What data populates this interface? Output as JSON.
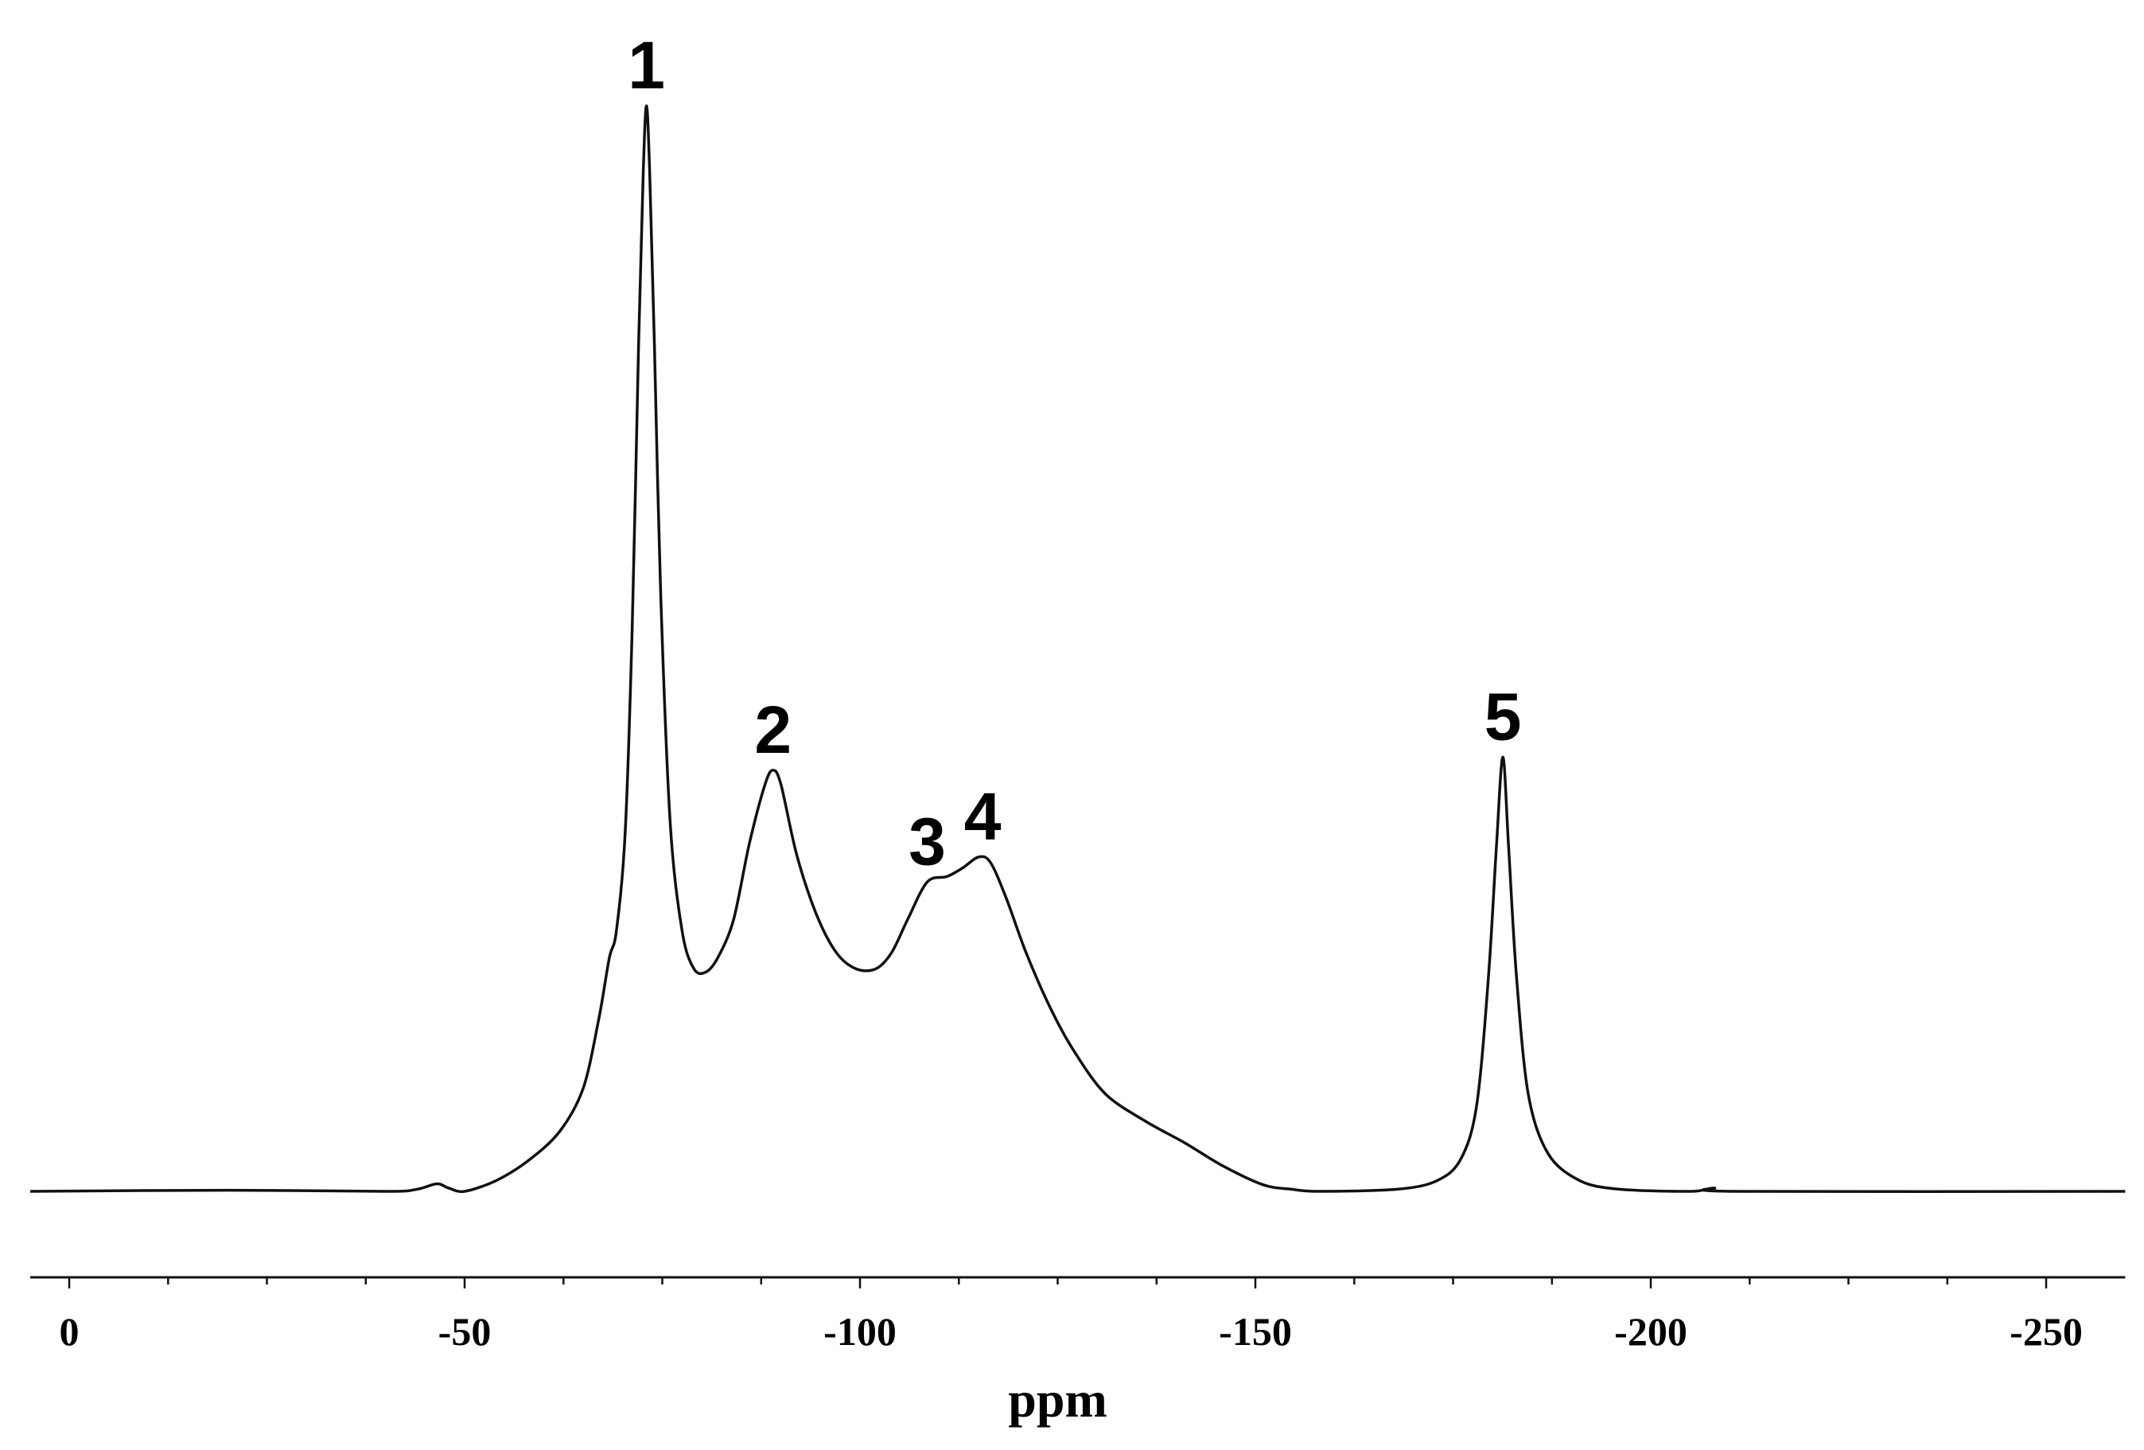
{
  "chart_data": {
    "type": "line",
    "title": "",
    "xlabel": "ppm",
    "ylabel": "",
    "xlim": [
      5,
      -260
    ],
    "ylim": [
      0,
      100
    ],
    "x_reversed": true,
    "grid": false,
    "x_ticks": [
      0,
      -50,
      -100,
      -150,
      -200,
      -250
    ],
    "x_tick_labels": [
      "0",
      "-50",
      "-100",
      "-150",
      "-200",
      "-250"
    ],
    "x_minor_tick_step": 12.5,
    "series": [
      {
        "points": [
          [
            5,
            0.0
          ],
          [
            -20,
            0.1
          ],
          [
            -40,
            0.0
          ],
          [
            -44,
            0.2
          ],
          [
            -46.5,
            0.7
          ],
          [
            -48,
            0.3
          ],
          [
            -50,
            0.0
          ],
          [
            -54,
            1.0
          ],
          [
            -58,
            2.8
          ],
          [
            -62,
            5.5
          ],
          [
            -65,
            9.5
          ],
          [
            -67,
            16.0
          ],
          [
            -68.3,
            21.5
          ],
          [
            -69.2,
            24.0
          ],
          [
            -70.3,
            33.0
          ],
          [
            -71.2,
            52.0
          ],
          [
            -72.0,
            78.0
          ],
          [
            -72.6,
            94.0
          ],
          [
            -73.0,
            100.0
          ],
          [
            -73.4,
            94.0
          ],
          [
            -74.0,
            78.0
          ],
          [
            -74.8,
            55.0
          ],
          [
            -76.0,
            34.0
          ],
          [
            -77.5,
            24.0
          ],
          [
            -79.0,
            20.5
          ],
          [
            -80.5,
            20.2
          ],
          [
            -82.0,
            21.5
          ],
          [
            -84.0,
            25.0
          ],
          [
            -86.0,
            32.0
          ],
          [
            -88.0,
            37.5
          ],
          [
            -89.0,
            38.8
          ],
          [
            -90.0,
            37.5
          ],
          [
            -92.0,
            31.0
          ],
          [
            -94.5,
            25.5
          ],
          [
            -97.0,
            22.0
          ],
          [
            -99.5,
            20.5
          ],
          [
            -102.0,
            20.5
          ],
          [
            -104.0,
            22.0
          ],
          [
            -106.0,
            25.0
          ],
          [
            -108.5,
            28.5
          ],
          [
            -111.0,
            29.0
          ],
          [
            -113.0,
            29.8
          ],
          [
            -115.0,
            30.8
          ],
          [
            -116.5,
            30.3
          ],
          [
            -118.5,
            27.0
          ],
          [
            -121.0,
            22.0
          ],
          [
            -124.0,
            17.0
          ],
          [
            -127.0,
            13.0
          ],
          [
            -131.0,
            9.0
          ],
          [
            -136.0,
            6.5
          ],
          [
            -141.0,
            4.5
          ],
          [
            -146.0,
            2.3
          ],
          [
            -151.0,
            0.6
          ],
          [
            -154.5,
            0.2
          ],
          [
            -158.0,
            0.0
          ],
          [
            -168.0,
            0.2
          ],
          [
            -173.0,
            1.0
          ],
          [
            -176.0,
            3.0
          ],
          [
            -178.0,
            8.0
          ],
          [
            -179.5,
            20.0
          ],
          [
            -180.5,
            32.0
          ],
          [
            -181.3,
            40.0
          ],
          [
            -182.0,
            32.0
          ],
          [
            -183.0,
            20.0
          ],
          [
            -184.5,
            9.0
          ],
          [
            -187.0,
            3.5
          ],
          [
            -191.0,
            1.0
          ],
          [
            -196.0,
            0.2
          ],
          [
            -205.0,
            0.0
          ],
          [
            -208.0,
            0.3
          ],
          [
            -211.0,
            0.0
          ],
          [
            -260.0,
            0.0
          ]
        ]
      }
    ],
    "annotations": [
      {
        "text": "1",
        "x": -73.0,
        "y": 100.0
      },
      {
        "text": "2",
        "x": -89.0,
        "y": 38.8
      },
      {
        "text": "3",
        "x": -108.5,
        "y": 28.5
      },
      {
        "text": "4",
        "x": -115.5,
        "y": 30.8
      },
      {
        "text": "5",
        "x": -181.3,
        "y": 40.0
      }
    ]
  }
}
